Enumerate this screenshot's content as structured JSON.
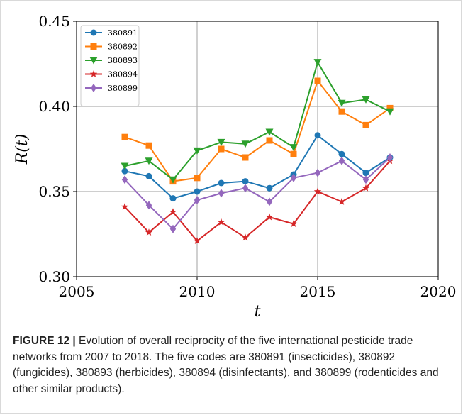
{
  "chart_data": {
    "type": "line",
    "xlabel": "t",
    "ylabel": "R(t)",
    "xlim": [
      2005,
      2020
    ],
    "ylim": [
      0.3,
      0.45
    ],
    "xticks": [
      2005,
      2010,
      2015,
      2020
    ],
    "yticks": [
      0.3,
      0.35,
      0.4,
      0.45
    ],
    "xtick_labels": [
      "2005",
      "2010",
      "2015",
      "2020"
    ],
    "ytick_labels": [
      "0.30",
      "0.35",
      "0.40",
      "0.45"
    ],
    "grid": true,
    "legend_position": "top-left",
    "x": [
      2007,
      2008,
      2009,
      2010,
      2011,
      2012,
      2013,
      2014,
      2015,
      2016,
      2017,
      2018
    ],
    "series": [
      {
        "name": "380891",
        "color": "#1f77b4",
        "marker": "circle",
        "values": [
          0.362,
          0.359,
          0.346,
          0.35,
          0.355,
          0.356,
          0.352,
          0.36,
          0.383,
          0.372,
          0.361,
          0.37
        ]
      },
      {
        "name": "380892",
        "color": "#ff7f0e",
        "marker": "square",
        "values": [
          0.382,
          0.377,
          0.356,
          0.358,
          0.375,
          0.37,
          0.38,
          0.372,
          0.415,
          0.397,
          0.389,
          0.399
        ]
      },
      {
        "name": "380893",
        "color": "#2ca02c",
        "marker": "triangle-down",
        "values": [
          0.365,
          0.368,
          0.357,
          0.374,
          0.379,
          0.378,
          0.385,
          0.376,
          0.426,
          0.402,
          0.404,
          0.397
        ]
      },
      {
        "name": "380894",
        "color": "#d62728",
        "marker": "star",
        "values": [
          0.341,
          0.326,
          0.338,
          0.321,
          0.332,
          0.323,
          0.335,
          0.331,
          0.35,
          0.344,
          0.352,
          0.368
        ]
      },
      {
        "name": "380899",
        "color": "#9467bd",
        "marker": "diamond",
        "values": [
          0.357,
          0.342,
          0.328,
          0.345,
          0.349,
          0.352,
          0.344,
          0.358,
          0.361,
          0.368,
          0.357,
          0.37
        ]
      }
    ]
  },
  "caption": {
    "label": "FIGURE 12 |",
    "text": " Evolution of overall reciprocity of the five international pesticide trade networks from 2007 to 2018. The five codes are 380891 (insecticides), 380892 (fungicides), 380893 (herbicides), 380894 (disinfectants), and 380899 (rodenticides and other similar products)."
  }
}
